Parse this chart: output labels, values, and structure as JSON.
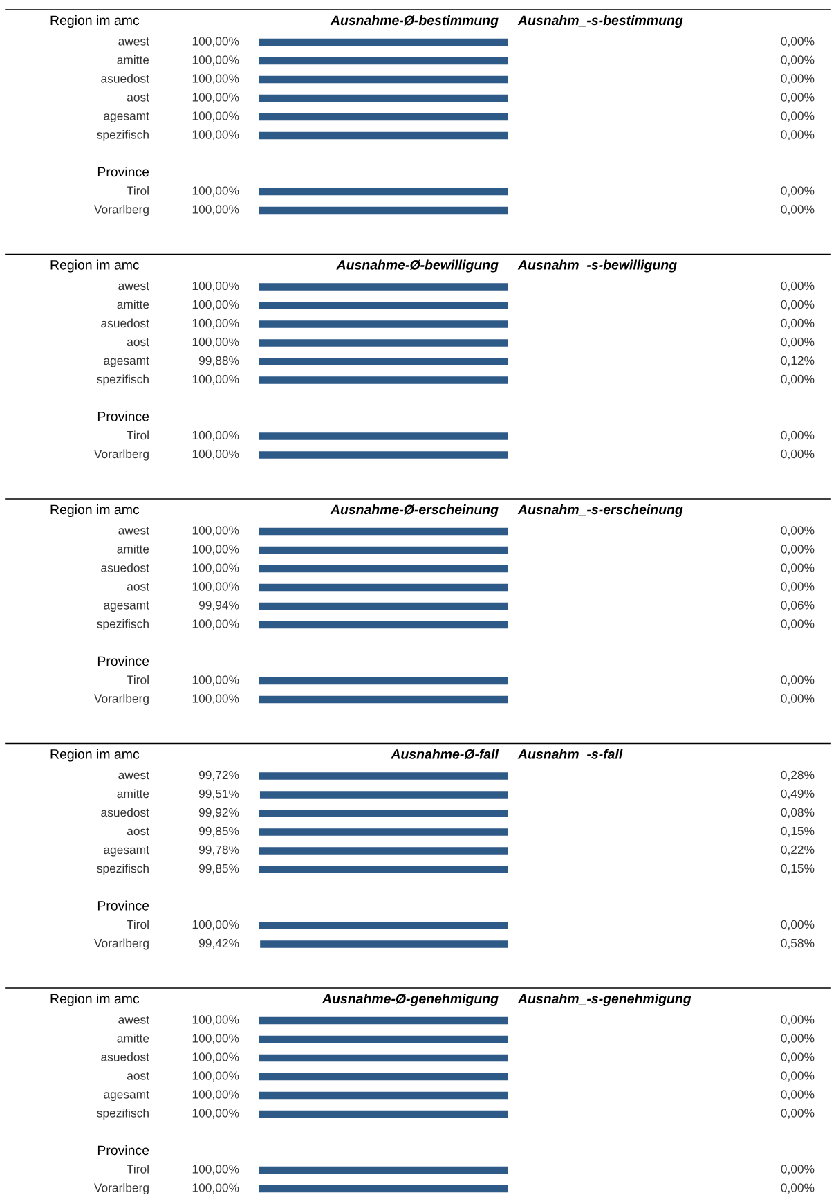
{
  "chart_data": [
    {
      "type": "bar",
      "orientation": "horizontal",
      "stacked": true,
      "ylabel": "Region im amc",
      "categories": [
        "awest",
        "amitte",
        "asuedost",
        "aost",
        "agesamt",
        "spezifisch",
        null,
        "Province",
        "Tirol",
        "Vorarlberg"
      ],
      "xlim": [
        100,
        0
      ],
      "data_labels": true,
      "series": [
        {
          "name": "Ausnahme-Ø-bestimmung",
          "color": "#2e5a87",
          "values": [
            100,
            100,
            100,
            100,
            100,
            100,
            null,
            null,
            100,
            100
          ],
          "value_labels": [
            "100,00%",
            "100,00%",
            "100,00%",
            "100,00%",
            "100,00%",
            "100,00%",
            null,
            null,
            "100,00%",
            "100,00%"
          ]
        },
        {
          "name": "Ausnahm_-s-bestimmung",
          "values": [
            0,
            0,
            0,
            0,
            0,
            0,
            null,
            null,
            0,
            0
          ],
          "value_labels": [
            "0,00%",
            "0,00%",
            "0,00%",
            "0,00%",
            "0,00%",
            "0,00%",
            null,
            null,
            "0,00%",
            "0,00%"
          ]
        }
      ]
    },
    {
      "type": "bar",
      "orientation": "horizontal",
      "stacked": true,
      "ylabel": "Region im amc",
      "categories": [
        "awest",
        "amitte",
        "asuedost",
        "aost",
        "agesamt",
        "spezifisch",
        null,
        "Province",
        "Tirol",
        "Vorarlberg"
      ],
      "xlim": [
        100,
        0
      ],
      "data_labels": true,
      "series": [
        {
          "name": "Ausnahme-Ø-bewilligung",
          "color": "#2e5a87",
          "values": [
            100,
            100,
            100,
            100,
            99.88,
            100,
            null,
            null,
            100,
            100
          ],
          "value_labels": [
            "100,00%",
            "100,00%",
            "100,00%",
            "100,00%",
            "99,88%",
            "100,00%",
            null,
            null,
            "100,00%",
            "100,00%"
          ]
        },
        {
          "name": "Ausnahm_-s-bewilligung",
          "color": "#ffffff",
          "values": [
            0,
            0,
            0,
            0,
            0.12,
            0,
            null,
            null,
            0,
            0
          ],
          "value_labels": [
            "0,00%",
            "0,00%",
            "0,00%",
            "0,00%",
            "0,12%",
            "0,00%",
            null,
            null,
            "0,00%",
            "0,00%"
          ]
        }
      ]
    },
    {
      "type": "bar",
      "orientation": "horizontal",
      "stacked": true,
      "ylabel": "Region im amc",
      "categories": [
        "awest",
        "amitte",
        "asuedost",
        "aost",
        "agesamt",
        "spezifisch",
        null,
        "Province",
        "Tirol",
        "Vorarlberg"
      ],
      "xlim": [
        100,
        0
      ],
      "data_labels": true,
      "series": [
        {
          "name": "Ausnahme-Ø-erscheinung",
          "color": "#2e5a87",
          "values": [
            100,
            100,
            100,
            100,
            99.94,
            100,
            null,
            null,
            100,
            100
          ],
          "value_labels": [
            "100,00%",
            "100,00%",
            "100,00%",
            "100,00%",
            "99,94%",
            "100,00%",
            null,
            null,
            "100,00%",
            "100,00%"
          ]
        },
        {
          "name": "Ausnahm_-s-erscheinung",
          "color": "#ffffff",
          "values": [
            0,
            0,
            0,
            0,
            0.06,
            0,
            null,
            null,
            0,
            0
          ],
          "value_labels": [
            "0,00%",
            "0,00%",
            "0,00%",
            "0,00%",
            "0,06%",
            "0,00%",
            null,
            null,
            "0,00%",
            "0,00%"
          ]
        }
      ]
    },
    {
      "type": "bar",
      "orientation": "horizontal",
      "stacked": true,
      "ylabel": "Region im amc",
      "categories": [
        "awest",
        "amitte",
        "asuedost",
        "aost",
        "agesamt",
        "spezifisch",
        null,
        "Province",
        "Tirol",
        "Vorarlberg"
      ],
      "xlim": [
        100,
        0
      ],
      "data_labels": true,
      "series": [
        {
          "name": "Ausnahme-Ø-fall",
          "color": "#2e5a87",
          "values": [
            99.72,
            99.51,
            99.92,
            99.85,
            99.78,
            99.85,
            null,
            null,
            100,
            99.42
          ],
          "value_labels": [
            "99,72%",
            "99,51%",
            "99,92%",
            "99,85%",
            "99,78%",
            "99,85%",
            null,
            null,
            "100,00%",
            "99,42%"
          ]
        },
        {
          "name": "Ausnahm_-s-fall",
          "color": "#ffffff",
          "values": [
            0.28,
            0.49,
            0.08,
            0.15,
            0.22,
            0.15,
            null,
            null,
            0,
            0.58
          ],
          "value_labels": [
            "0,28%",
            "0,49%",
            "0,08%",
            "0,15%",
            "0,22%",
            "0,15%",
            null,
            null,
            "0,00%",
            "0,58%"
          ]
        }
      ]
    },
    {
      "type": "bar",
      "orientation": "horizontal",
      "stacked": true,
      "ylabel": "Region im amc",
      "categories": [
        "awest",
        "amitte",
        "asuedost",
        "aost",
        "agesamt",
        "spezifisch",
        null,
        "Province",
        "Tirol",
        "Vorarlberg"
      ],
      "xlim": [
        100,
        0
      ],
      "data_labels": true,
      "series": [
        {
          "name": "Ausnahme-Ø-genehmigung",
          "color": "#2e5a87",
          "values": [
            100,
            100,
            100,
            100,
            100,
            100,
            null,
            null,
            100,
            100
          ],
          "value_labels": [
            "100,00%",
            "100,00%",
            "100,00%",
            "100,00%",
            "100,00%",
            "100,00%",
            null,
            null,
            "100,00%",
            "100,00%"
          ]
        },
        {
          "name": "Ausnahm_-s-genehmigung",
          "values": [
            0,
            0,
            0,
            0,
            0,
            0,
            null,
            null,
            0,
            0
          ],
          "value_labels": [
            "0,00%",
            "0,00%",
            "0,00%",
            "0,00%",
            "0,00%",
            "0,00%",
            null,
            null,
            "0,00%",
            "0,00%"
          ]
        }
      ]
    }
  ]
}
